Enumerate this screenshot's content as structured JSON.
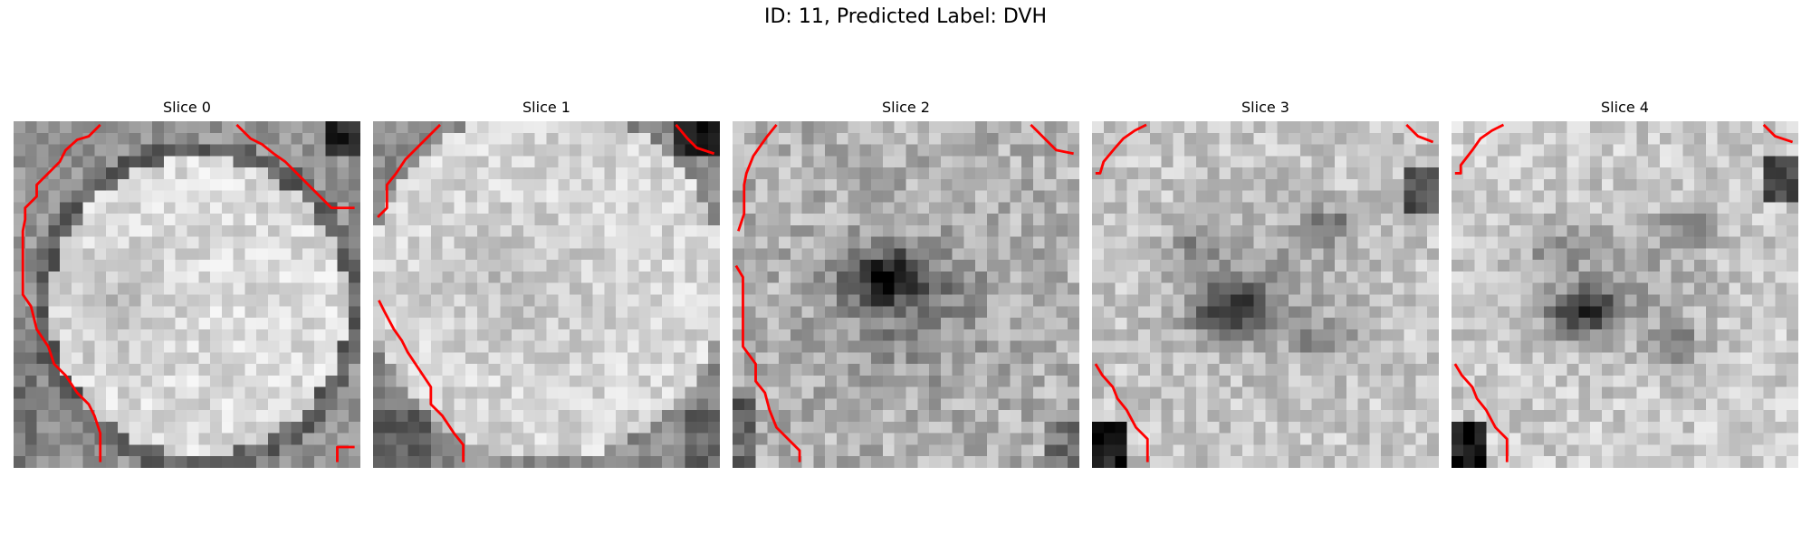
{
  "figure": {
    "title": "ID: 11, Predicted Label: DVH"
  },
  "colors": {
    "contour": "#ff0000",
    "colormap": "grayscale"
  },
  "slices": [
    {
      "label": "Slice 0"
    },
    {
      "label": "Slice 1"
    },
    {
      "label": "Slice 2"
    },
    {
      "label": "Slice 3"
    },
    {
      "label": "Slice 4"
    }
  ]
}
